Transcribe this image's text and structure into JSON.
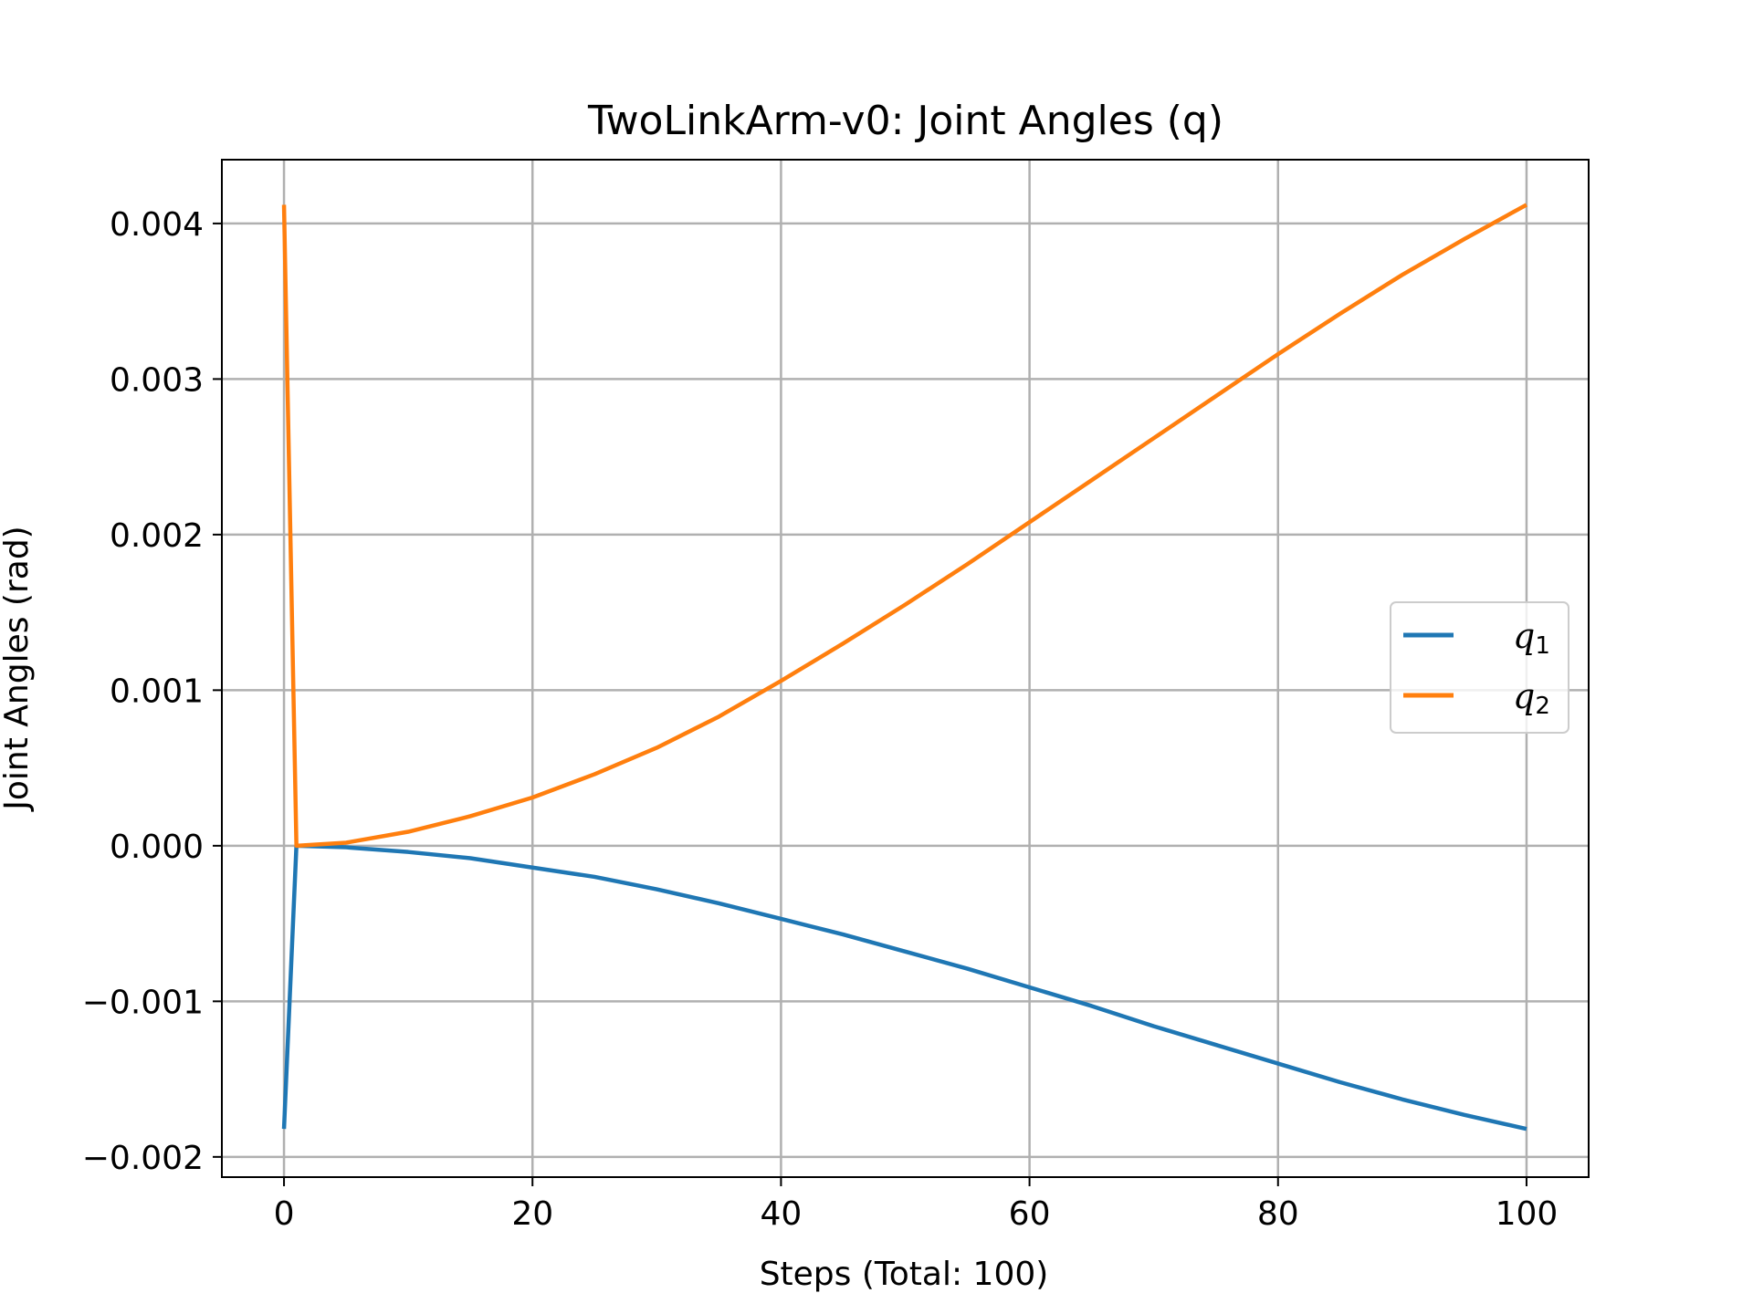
{
  "chart_data": {
    "type": "line",
    "title": "TwoLinkArm-v0: Joint Angles (q)",
    "xlabel": "Steps (Total: 100)",
    "ylabel": "Joint Angles (rad)",
    "xlim": [
      -5,
      105
    ],
    "ylim": [
      -0.00213,
      0.00441
    ],
    "xticks": [
      0,
      20,
      40,
      60,
      80,
      100
    ],
    "xtick_labels": [
      "0",
      "20",
      "40",
      "60",
      "80",
      "100"
    ],
    "yticks": [
      -0.002,
      -0.001,
      0.0,
      0.001,
      0.002,
      0.003,
      0.004
    ],
    "ytick_labels": [
      "−0.002",
      "−0.001",
      "0.000",
      "0.001",
      "0.002",
      "0.003",
      "0.004"
    ],
    "grid": true,
    "legend_position": "center-right",
    "series": [
      {
        "name": "q",
        "subscript": "1",
        "color": "#1f77b4",
        "points": [
          [
            0,
            -0.00182
          ],
          [
            1,
            0.0
          ],
          [
            5,
            -1e-05
          ],
          [
            10,
            -4e-05
          ],
          [
            15,
            -8e-05
          ],
          [
            20,
            -0.00014
          ],
          [
            25,
            -0.0002
          ],
          [
            30,
            -0.00028
          ],
          [
            35,
            -0.00037
          ],
          [
            40,
            -0.00047
          ],
          [
            45,
            -0.00057
          ],
          [
            50,
            -0.00068
          ],
          [
            55,
            -0.00079
          ],
          [
            60,
            -0.00091
          ],
          [
            65,
            -0.00103
          ],
          [
            70,
            -0.00116
          ],
          [
            75,
            -0.00128
          ],
          [
            80,
            -0.0014
          ],
          [
            85,
            -0.00152
          ],
          [
            90,
            -0.00163
          ],
          [
            95,
            -0.00173
          ],
          [
            100,
            -0.00182
          ]
        ]
      },
      {
        "name": "q",
        "subscript": "2",
        "color": "#ff7f0e",
        "points": [
          [
            0,
            0.00412
          ],
          [
            1,
            0.0
          ],
          [
            5,
            2e-05
          ],
          [
            10,
            9e-05
          ],
          [
            15,
            0.00019
          ],
          [
            20,
            0.00031
          ],
          [
            25,
            0.00046
          ],
          [
            30,
            0.00063
          ],
          [
            35,
            0.00083
          ],
          [
            40,
            0.00106
          ],
          [
            45,
            0.0013
          ],
          [
            50,
            0.00155
          ],
          [
            55,
            0.00181
          ],
          [
            60,
            0.00208
          ],
          [
            65,
            0.00235
          ],
          [
            70,
            0.00262
          ],
          [
            75,
            0.00289
          ],
          [
            80,
            0.00316
          ],
          [
            85,
            0.00342
          ],
          [
            90,
            0.00367
          ],
          [
            95,
            0.0039
          ],
          [
            100,
            0.00412
          ]
        ]
      }
    ]
  }
}
